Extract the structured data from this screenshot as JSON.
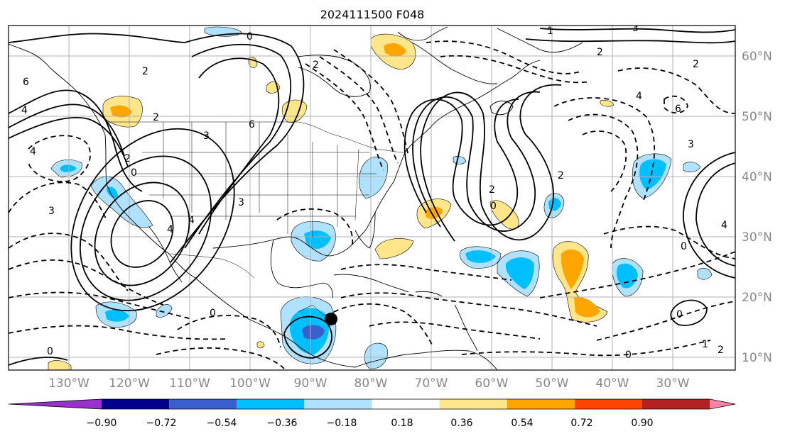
{
  "title": "2024111500 F048",
  "lon_labels": [
    "130°W",
    "120°W",
    "110°W",
    "100°W",
    "90°W",
    "80°W",
    "70°W",
    "60°W",
    "50°W",
    "40°W",
    "30°W"
  ],
  "lat_labels": [
    "60°N",
    "50°N",
    "40°N",
    "30°N",
    "20°N",
    "10°N"
  ],
  "colorbar": {
    "labels": [
      "−0.90",
      "−0.72",
      "−0.54",
      "−0.36",
      "−0.18",
      "0.18",
      "0.36",
      "0.54",
      "0.72",
      "0.90"
    ],
    "colors": [
      "#9932cc",
      "#00008b",
      "#3a5fcd",
      "#00bfff",
      "#b0e2ff",
      "#ffffff",
      "#ffe68a",
      "#ffa500",
      "#ff4500",
      "#b22222",
      "#ff82ab"
    ]
  },
  "fill_colors": {
    "light_blue": "#b0e2ff",
    "blue": "#00bfff",
    "royal": "#3a5fcd",
    "yellow": "#ffe68a",
    "orange": "#ffa500"
  },
  "contour_labels": [
    "0",
    "2",
    "2",
    "4",
    "6",
    "4",
    "3",
    "2",
    "0",
    "3",
    "2",
    "6",
    "4",
    "4",
    "3",
    "0",
    "4",
    "6",
    "3",
    "2",
    "2",
    "0",
    "0",
    "1",
    "2",
    "0",
    "0",
    "0",
    "4",
    "2",
    "1",
    "3",
    "2"
  ],
  "marker": {
    "lon": -86,
    "lat": 16.5
  }
}
